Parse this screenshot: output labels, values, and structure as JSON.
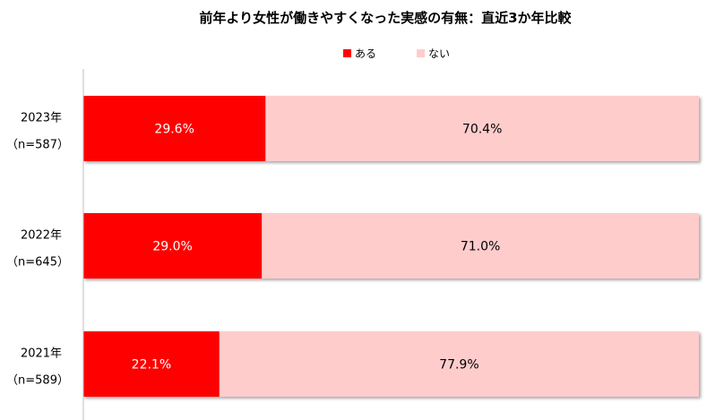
{
  "chart_data": {
    "type": "bar",
    "orientation": "horizontal",
    "stacked": true,
    "percent": true,
    "title": "前年より女性が働きやすくなった実感の有無：直近3か年比較",
    "categories": [
      {
        "year": "2023年",
        "n": "（n=587）"
      },
      {
        "year": "2022年",
        "n": "（n=645）"
      },
      {
        "year": "2021年",
        "n": "（n=589）"
      }
    ],
    "series": [
      {
        "name": "ある",
        "color": "#FF0000",
        "label_color": "#FFFFFF",
        "values": [
          29.6,
          29.0,
          22.1
        ],
        "labels": [
          "29.6%",
          "29.0%",
          "22.1%"
        ]
      },
      {
        "name": "ない",
        "color": "#FFCCCC",
        "label_color": "#000000",
        "values": [
          70.4,
          71.0,
          77.9
        ],
        "labels": [
          "70.4%",
          "71.0%",
          "77.9%"
        ]
      }
    ],
    "xlim": [
      0,
      100
    ],
    "legend_position": "top-center",
    "grid": false
  }
}
